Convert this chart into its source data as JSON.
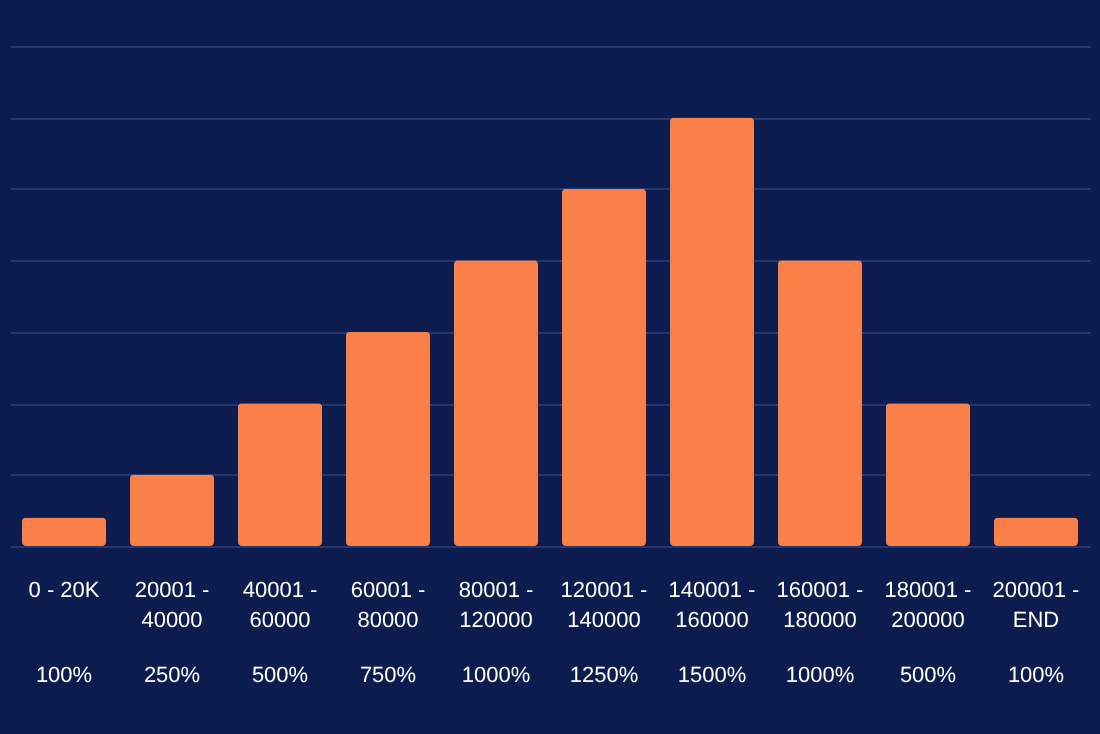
{
  "chart_data": {
    "type": "bar",
    "categories": [
      "0 - 20K",
      "20001 - 40000",
      "40001 - 60000",
      "60001 - 80000",
      "80001 - 120000",
      "120001 - 140000",
      "140001 - 160000",
      "160001 - 180000",
      "180001 - 200000",
      "200001 - END"
    ],
    "values": [
      100,
      250,
      500,
      750,
      1000,
      1250,
      1500,
      1000,
      500,
      100
    ],
    "value_labels": [
      "100%",
      "250%",
      "500%",
      "750%",
      "1000%",
      "1250%",
      "1500%",
      "1000%",
      "500%",
      "100%"
    ],
    "color": "#fa7f48",
    "ylim": [
      0,
      1750
    ],
    "yticks": [
      {
        "value": 0,
        "label": null
      },
      {
        "value": 250,
        "label": null
      },
      {
        "value": 500,
        "label": null
      },
      {
        "value": 750,
        "label": null
      },
      {
        "value": 1000,
        "label": null
      },
      {
        "value": 1250,
        "label": null
      },
      {
        "value": 1500,
        "label": null
      },
      {
        "value": 1750,
        "label": null
      }
    ],
    "grid": "y",
    "tick_labels": "x"
  }
}
